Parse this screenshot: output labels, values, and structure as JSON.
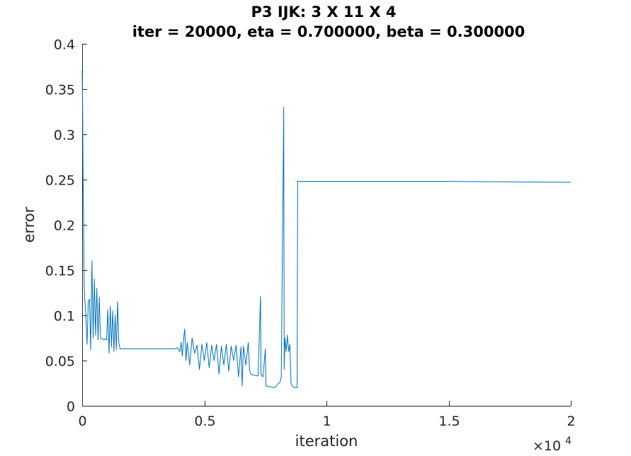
{
  "chart_data": {
    "type": "line",
    "title": "P3 IJK: 3 X 11 X 4",
    "subtitle": "iter = 20000, eta = 0.700000, beta = 0.300000",
    "xlabel": "iteration",
    "ylabel": "error",
    "xlim": [
      0,
      20000
    ],
    "ylim": [
      0,
      0.4
    ],
    "x_exponent_label": "×10",
    "x_exponent_power": "4",
    "x_ticks": [
      0,
      5000,
      10000,
      15000,
      20000
    ],
    "x_tick_labels": [
      "0",
      "0.5",
      "1",
      "1.5",
      "2"
    ],
    "y_ticks": [
      0,
      0.05,
      0.1,
      0.15,
      0.2,
      0.25,
      0.3,
      0.35,
      0.4
    ],
    "y_tick_labels": [
      "0",
      "0.05",
      "0.1",
      "0.15",
      "0.2",
      "0.25",
      "0.3",
      "0.35",
      "0.4"
    ],
    "grid": false,
    "line_color": "#0072BD",
    "series": [
      {
        "points": [
          [
            0,
            0.37
          ],
          [
            20,
            0.33
          ],
          [
            40,
            0.25
          ],
          [
            60,
            0.2
          ],
          [
            80,
            0.14
          ],
          [
            100,
            0.12
          ],
          [
            150,
            0.1
          ],
          [
            200,
            0.068
          ],
          [
            250,
            0.115
          ],
          [
            300,
            0.118
          ],
          [
            350,
            0.062
          ],
          [
            400,
            0.16
          ],
          [
            450,
            0.075
          ],
          [
            500,
            0.14
          ],
          [
            550,
            0.078
          ],
          [
            600,
            0.13
          ],
          [
            650,
            0.073
          ],
          [
            700,
            0.12
          ],
          [
            750,
            0.075
          ],
          [
            800,
            0.074
          ],
          [
            850,
            0.074
          ],
          [
            900,
            0.073
          ],
          [
            950,
            0.074
          ],
          [
            1000,
            0.073
          ],
          [
            1050,
            0.106
          ],
          [
            1100,
            0.058
          ],
          [
            1150,
            0.11
          ],
          [
            1200,
            0.065
          ],
          [
            1250,
            0.105
          ],
          [
            1300,
            0.06
          ],
          [
            1350,
            0.1
          ],
          [
            1400,
            0.062
          ],
          [
            1450,
            0.115
          ],
          [
            1500,
            0.07
          ],
          [
            1550,
            0.063
          ],
          [
            2000,
            0.063
          ],
          [
            3000,
            0.063
          ],
          [
            3800,
            0.063
          ],
          [
            3900,
            0.064
          ],
          [
            4000,
            0.06
          ],
          [
            4050,
            0.07
          ],
          [
            4100,
            0.055
          ],
          [
            4150,
            0.073
          ],
          [
            4200,
            0.085
          ],
          [
            4250,
            0.05
          ],
          [
            4300,
            0.07
          ],
          [
            4400,
            0.045
          ],
          [
            4500,
            0.075
          ],
          [
            4600,
            0.058
          ],
          [
            4700,
            0.067
          ],
          [
            4800,
            0.04
          ],
          [
            4900,
            0.068
          ],
          [
            5000,
            0.05
          ],
          [
            5100,
            0.07
          ],
          [
            5200,
            0.042
          ],
          [
            5300,
            0.067
          ],
          [
            5400,
            0.05
          ],
          [
            5500,
            0.068
          ],
          [
            5600,
            0.035
          ],
          [
            5700,
            0.066
          ],
          [
            5800,
            0.045
          ],
          [
            5900,
            0.068
          ],
          [
            6000,
            0.038
          ],
          [
            6100,
            0.066
          ],
          [
            6200,
            0.05
          ],
          [
            6300,
            0.067
          ],
          [
            6400,
            0.032
          ],
          [
            6500,
            0.065
          ],
          [
            6550,
            0.022
          ],
          [
            6600,
            0.066
          ],
          [
            6700,
            0.045
          ],
          [
            6800,
            0.07
          ],
          [
            6850,
            0.04
          ],
          [
            6900,
            0.035
          ],
          [
            7000,
            0.034
          ],
          [
            7200,
            0.033
          ],
          [
            7300,
            0.121
          ],
          [
            7320,
            0.035
          ],
          [
            7400,
            0.032
          ],
          [
            7500,
            0.063
          ],
          [
            7520,
            0.022
          ],
          [
            7700,
            0.021
          ],
          [
            7900,
            0.02
          ],
          [
            8000,
            0.024
          ],
          [
            8100,
            0.026
          ],
          [
            8150,
            0.032
          ],
          [
            8250,
            0.33
          ],
          [
            8270,
            0.04
          ],
          [
            8300,
            0.075
          ],
          [
            8350,
            0.06
          ],
          [
            8400,
            0.078
          ],
          [
            8450,
            0.06
          ],
          [
            8500,
            0.068
          ],
          [
            8550,
            0.025
          ],
          [
            8600,
            0.022
          ],
          [
            8700,
            0.02
          ],
          [
            8800,
            0.02
          ],
          [
            8820,
            0.248
          ],
          [
            10000,
            0.248
          ],
          [
            15000,
            0.248
          ],
          [
            20000,
            0.247
          ]
        ]
      }
    ]
  }
}
